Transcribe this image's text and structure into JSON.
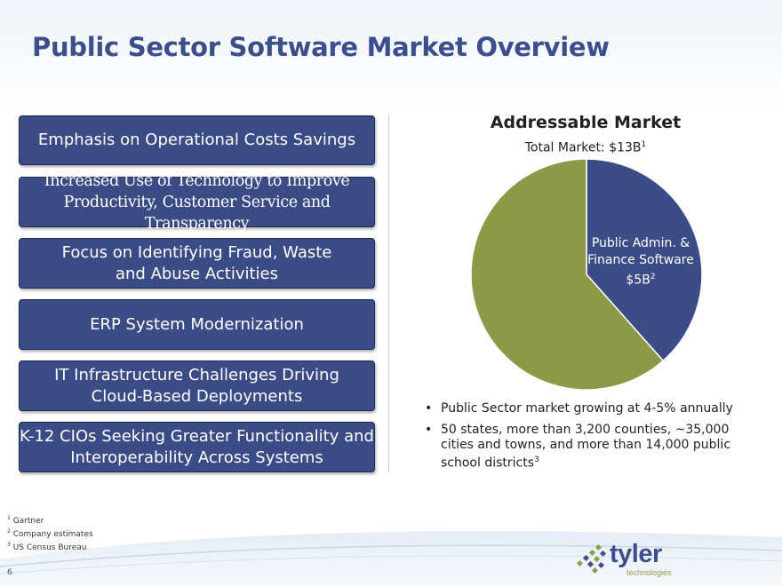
{
  "slide": {
    "title": "Public Sector Software Market Overview",
    "page_number": "6"
  },
  "drivers": [
    {
      "line1": "Emphasis on Operational Costs Savings",
      "line2": ""
    },
    {
      "line1": "Increased Use of Technology to Improve",
      "line2": "Productivity, Customer Service and Transparency"
    },
    {
      "line1": "Focus on Identifying Fraud, Waste",
      "line2": "and Abuse Activities"
    },
    {
      "line1": "ERP System Modernization",
      "line2": ""
    },
    {
      "line1": "IT Infrastructure Challenges Driving",
      "line2": "Cloud-Based Deployments"
    },
    {
      "line1": "K-12 CIOs Seeking Greater Functionality and",
      "line2": "Interoperability Across Systems"
    }
  ],
  "market": {
    "title": "Addressable Market",
    "subtitle": "Total Market: $13B",
    "subtitle_sup": "1",
    "slice_label_line1": "Public Admin. &",
    "slice_label_line2": "Finance Software",
    "slice_value": "$5B",
    "slice_value_sup": "2"
  },
  "chart_data": {
    "type": "pie",
    "total": 13,
    "slices": [
      {
        "label": "Public Admin. & Finance Software",
        "value": 5,
        "color": "#3c4c86"
      },
      {
        "label": "",
        "value": 8,
        "color": "#8c9a48"
      }
    ]
  },
  "bullets": {
    "marker": "•",
    "b1": "Public Sector market growing at 4-5% annually",
    "b2": "50 states, more than 3,200 counties, ~35,000 cities and towns, and more than 14,000 public school districts",
    "b2_sup": "3"
  },
  "footnotes": [
    {
      "num": "1",
      "text": "Gartner"
    },
    {
      "num": "2",
      "text": "Company estimates"
    },
    {
      "num": "3",
      "text": "US Census Bureau"
    }
  ],
  "logo": {
    "word": "tyler",
    "sub": "technologies"
  },
  "colors": {
    "title": "#3b4f8c",
    "box_fill": "#3b4b85",
    "accent_green": "#8c9a48"
  }
}
